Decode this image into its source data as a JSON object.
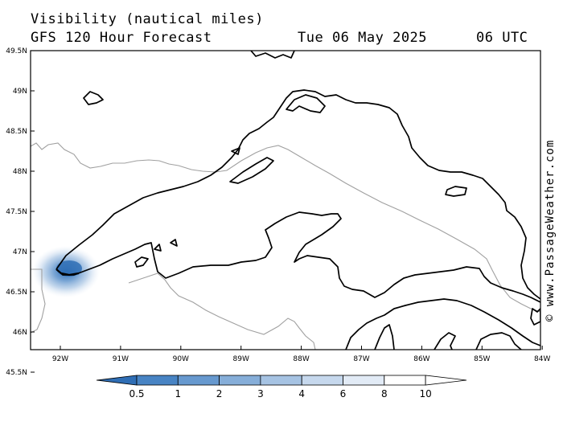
{
  "header": {
    "line1": "Visibility (nautical miles)",
    "line2": "GFS 120 Hour Forecast",
    "date": "Tue 06 May 2025",
    "time": "06 UTC"
  },
  "watermark": "© www.PassageWeather.com",
  "axes": {
    "lat_labels": [
      "49.5N",
      "49N",
      "48.5N",
      "48N",
      "47.5N",
      "47N",
      "46.5N",
      "46N",
      "45.5N"
    ],
    "lon_labels": [
      "92W",
      "91W",
      "90W",
      "89W",
      "88W",
      "87W",
      "86W",
      "85W",
      "84W"
    ]
  },
  "legend": {
    "labels": [
      "0.5",
      "1",
      "2",
      "3",
      "4",
      "6",
      "8",
      "10"
    ],
    "colors": [
      "#2f6eb5",
      "#4884c4",
      "#6799cf",
      "#86aed9",
      "#a6c3e3",
      "#c6d8ed",
      "#e2ebf6",
      "#ffffff"
    ]
  },
  "colors": {
    "coast": "#000000",
    "border": "#a0a0a0",
    "fog_core": "#2f6eb5"
  }
}
